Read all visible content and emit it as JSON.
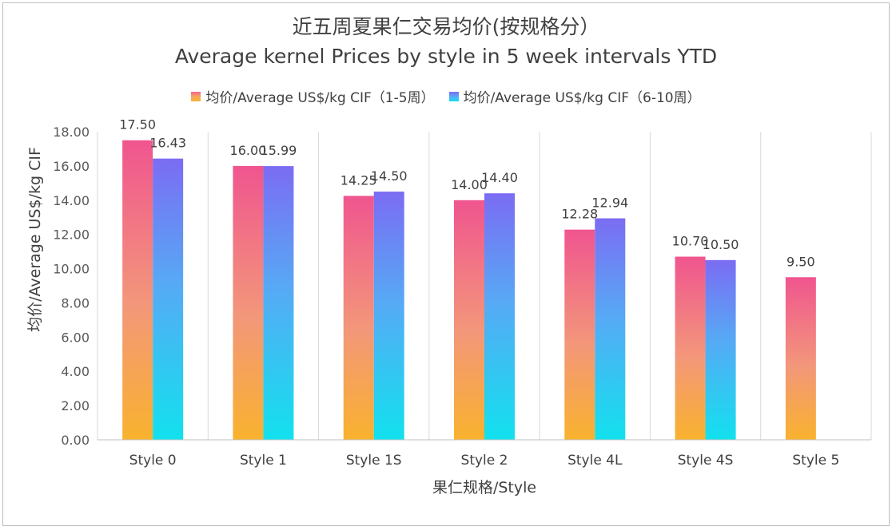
{
  "chart_data": {
    "type": "bar",
    "title": "近五周夏果仁交易均价(按规格分）",
    "subtitle": "Average kernel Prices by style in 5 week intervals YTD",
    "xlabel": "果仁规格/Style",
    "ylabel": "均价/Average US$/kg CIF",
    "categories": [
      "Style 0",
      "Style 1",
      "Style 1S",
      "Style 2",
      "Style 4L",
      "Style 4S",
      "Style 5"
    ],
    "series": [
      {
        "name": "均价/Average US$/kg CIF（1-5周）",
        "values": [
          17.5,
          16.0,
          14.25,
          14.0,
          12.28,
          10.7,
          9.5
        ],
        "color_top": "#f0558f",
        "color_bottom": "#f9b22e"
      },
      {
        "name": "均价/Average US$/kg CIF（6-10周）",
        "values": [
          16.43,
          15.99,
          14.5,
          14.4,
          12.94,
          10.5,
          null
        ],
        "color_top": "#7b6cf3",
        "color_bottom": "#12e1ee"
      }
    ],
    "ylim": [
      0,
      18
    ],
    "yticks": [
      "0.00",
      "2.00",
      "4.00",
      "6.00",
      "8.00",
      "10.00",
      "12.00",
      "14.00",
      "16.00",
      "18.00"
    ],
    "grid": "vertical",
    "legend": "top-center"
  }
}
